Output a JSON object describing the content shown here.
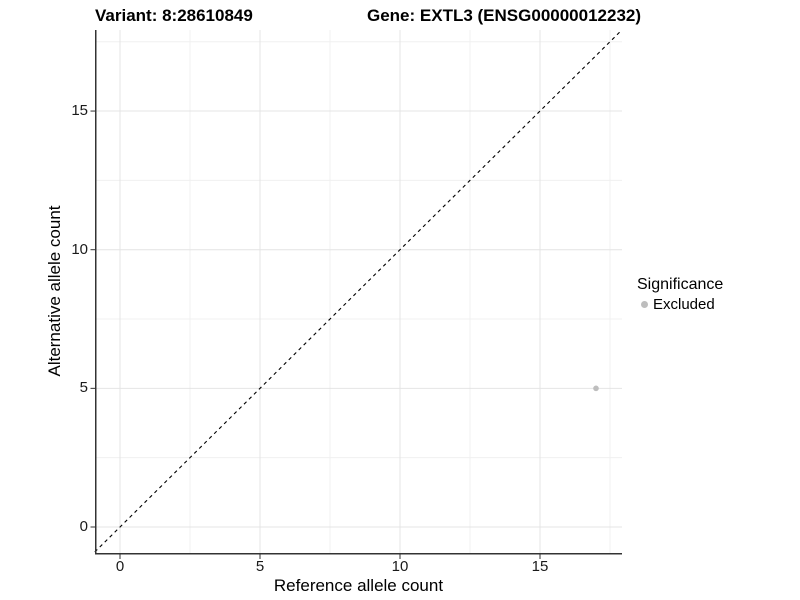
{
  "chart_data": {
    "type": "scatter",
    "title_left": "Variant: 8:28610849",
    "title_right": "Gene: EXTL3 (ENSG00000012232)",
    "xlabel": "Reference allele count",
    "ylabel": "Alternative allele count",
    "xlim": [
      -0.9,
      17.9
    ],
    "ylim": [
      -0.9,
      17.9
    ],
    "x_ticks": [
      0,
      5,
      10,
      15
    ],
    "y_ticks": [
      0,
      5,
      10,
      15
    ],
    "x_minor_ticks": [
      2.5,
      7.5,
      12.5,
      17.5
    ],
    "y_minor_ticks": [
      2.5,
      7.5,
      12.5,
      17.5
    ],
    "grid": "on",
    "reference_line": {
      "type": "identity",
      "style": "dashed",
      "color": "#000000"
    },
    "series": [
      {
        "name": "Excluded",
        "color": "#bebebe",
        "points": [
          {
            "x": 17,
            "y": 5
          }
        ]
      }
    ],
    "legend": {
      "title": "Significance",
      "position": "right",
      "items": [
        {
          "label": "Excluded",
          "color": "#bebebe"
        }
      ]
    }
  },
  "colors": {
    "background": "#ffffff",
    "axis_line": "#333333",
    "grid_major": "#e4e4e4",
    "grid_minor": "#f0f0f0",
    "tick_label": "#1a1a1a"
  }
}
